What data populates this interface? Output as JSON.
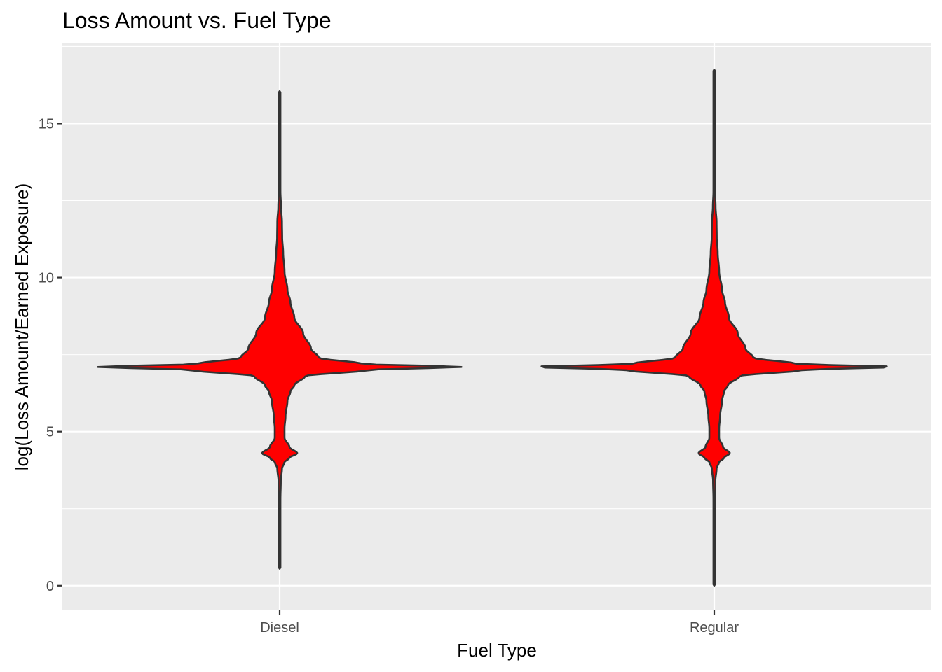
{
  "chart_data": {
    "type": "violin",
    "title": "Loss Amount vs. Fuel Type",
    "xlabel": "Fuel Type",
    "ylabel": "log(Loss Amount/Earned Exposure)",
    "categories": [
      "Diesel",
      "Regular"
    ],
    "ylim": [
      -0.8,
      17.6
    ],
    "yticks": [
      0,
      5,
      10,
      15
    ],
    "ytick_labels": [
      "0",
      "5",
      "10",
      "15"
    ],
    "grid": true,
    "fill_color": "#ff0000",
    "outline_color": "#333333",
    "panel_background": "#ebebeb",
    "series": [
      {
        "category": "Diesel",
        "min": 0.55,
        "max": 16.05,
        "profile": [
          [
            0.55,
            0.0
          ],
          [
            2.8,
            0.004
          ],
          [
            3.4,
            0.006
          ],
          [
            3.8,
            0.012
          ],
          [
            4.0,
            0.024
          ],
          [
            4.15,
            0.05
          ],
          [
            4.3,
            0.09
          ],
          [
            4.5,
            0.05
          ],
          [
            4.8,
            0.025
          ],
          [
            5.1,
            0.025
          ],
          [
            5.5,
            0.03
          ],
          [
            6.0,
            0.04
          ],
          [
            6.3,
            0.055
          ],
          [
            6.5,
            0.075
          ],
          [
            6.8,
            0.13
          ],
          [
            7.0,
            0.45
          ],
          [
            7.1,
            0.93
          ],
          [
            7.2,
            0.42
          ],
          [
            7.4,
            0.2
          ],
          [
            7.7,
            0.16
          ],
          [
            8.2,
            0.12
          ],
          [
            8.7,
            0.075
          ],
          [
            9.2,
            0.055
          ],
          [
            9.6,
            0.04
          ],
          [
            10.2,
            0.025
          ],
          [
            10.8,
            0.018
          ],
          [
            11.3,
            0.013
          ],
          [
            11.8,
            0.012
          ],
          [
            12.3,
            0.007
          ],
          [
            12.8,
            0.004
          ],
          [
            13.5,
            0.003
          ],
          [
            14.5,
            0.002
          ],
          [
            15.5,
            0.001
          ],
          [
            16.05,
            0.0
          ]
        ]
      },
      {
        "category": "Regular",
        "min": 0.0,
        "max": 16.75,
        "profile": [
          [
            0.0,
            0.0
          ],
          [
            2.8,
            0.004
          ],
          [
            3.4,
            0.006
          ],
          [
            3.8,
            0.012
          ],
          [
            4.0,
            0.024
          ],
          [
            4.15,
            0.05
          ],
          [
            4.3,
            0.08
          ],
          [
            4.5,
            0.045
          ],
          [
            4.8,
            0.025
          ],
          [
            5.1,
            0.025
          ],
          [
            5.5,
            0.03
          ],
          [
            6.0,
            0.04
          ],
          [
            6.3,
            0.05
          ],
          [
            6.5,
            0.07
          ],
          [
            6.8,
            0.13
          ],
          [
            7.0,
            0.45
          ],
          [
            7.1,
            0.93
          ],
          [
            7.2,
            0.42
          ],
          [
            7.4,
            0.2
          ],
          [
            7.7,
            0.16
          ],
          [
            8.2,
            0.12
          ],
          [
            8.7,
            0.075
          ],
          [
            9.2,
            0.055
          ],
          [
            9.6,
            0.04
          ],
          [
            10.2,
            0.025
          ],
          [
            10.8,
            0.018
          ],
          [
            11.3,
            0.013
          ],
          [
            11.8,
            0.012
          ],
          [
            12.3,
            0.007
          ],
          [
            12.8,
            0.004
          ],
          [
            13.5,
            0.003
          ],
          [
            14.5,
            0.002
          ],
          [
            15.5,
            0.001
          ],
          [
            16.75,
            0.0
          ]
        ]
      }
    ]
  }
}
